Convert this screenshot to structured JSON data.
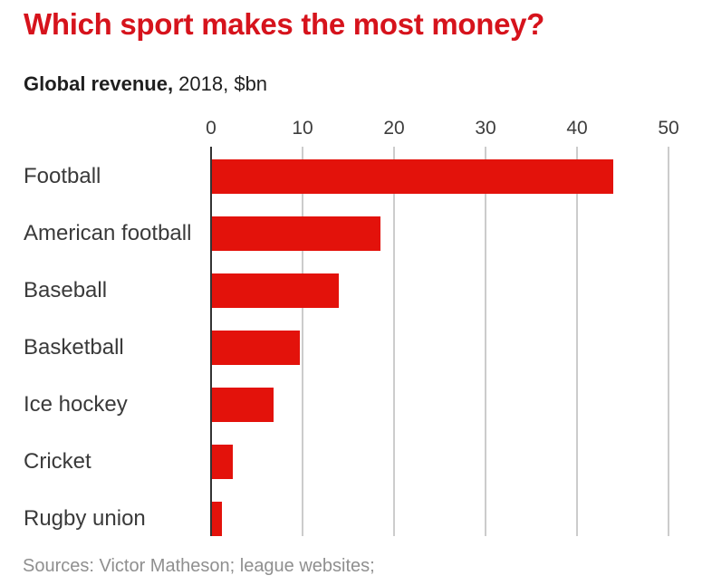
{
  "header": {
    "title": "Which sport makes the most money?",
    "subtitle_bold": "Global revenue,",
    "subtitle_rest": " 2018, $bn"
  },
  "footer": {
    "sources": "Sources: Victor Matheson; league websites;"
  },
  "colors": {
    "title_red": "#d6131c",
    "bar_red": "#e3120b",
    "grid": "#cccccc",
    "axis": "#333333",
    "label_text": "#3a3a3a",
    "muted": "#8f8f8f"
  },
  "chart_data": {
    "type": "bar",
    "orientation": "horizontal",
    "title": "Which sport makes the most money?",
    "subtitle": "Global revenue, 2018, $bn",
    "categories": [
      "Football",
      "American football",
      "Baseball",
      "Basketball",
      "Ice hockey",
      "Cricket",
      "Rugby union"
    ],
    "values": [
      44,
      18.5,
      14,
      9.7,
      6.8,
      2.4,
      1.2
    ],
    "xlabel": "",
    "ylabel": "",
    "xlim": [
      0,
      50
    ],
    "xticks": [
      0,
      10,
      20,
      30,
      40,
      50
    ],
    "grid": true,
    "legend": "none",
    "source": "Sources: Victor Matheson; league websites;"
  }
}
